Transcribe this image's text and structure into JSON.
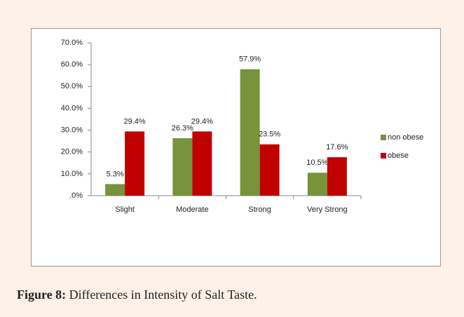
{
  "chart_data": {
    "type": "bar",
    "categories": [
      "Slight",
      "Moderate",
      "Strong",
      "Very Strong"
    ],
    "series": [
      {
        "name": "non obese",
        "color": "#77933c",
        "values": [
          5.3,
          26.3,
          57.9,
          10.5
        ],
        "value_labels": [
          "5.3%",
          "26.3%",
          "57.9%",
          "10.5%"
        ]
      },
      {
        "name": "obese",
        "color": "#c00000",
        "values": [
          29.4,
          29.4,
          23.5,
          17.6
        ],
        "value_labels": [
          "29.4%",
          "29.4%",
          "23.5%",
          "17.6%"
        ]
      }
    ],
    "ylim": [
      0,
      70
    ],
    "yticks": [
      {
        "value": 0,
        "label": ".0%"
      },
      {
        "value": 10,
        "label": "10.0%"
      },
      {
        "value": 20,
        "label": "20.0%"
      },
      {
        "value": 30,
        "label": "30.0%"
      },
      {
        "value": 40,
        "label": "40.0%"
      },
      {
        "value": 50,
        "label": "50.0%"
      },
      {
        "value": 60,
        "label": "60.0%"
      },
      {
        "value": 70,
        "label": "70.0%"
      }
    ],
    "grid": false,
    "legend": "right"
  },
  "caption": {
    "label": "Figure 8:",
    "text": "Differences in Intensity of Salt Taste."
  }
}
